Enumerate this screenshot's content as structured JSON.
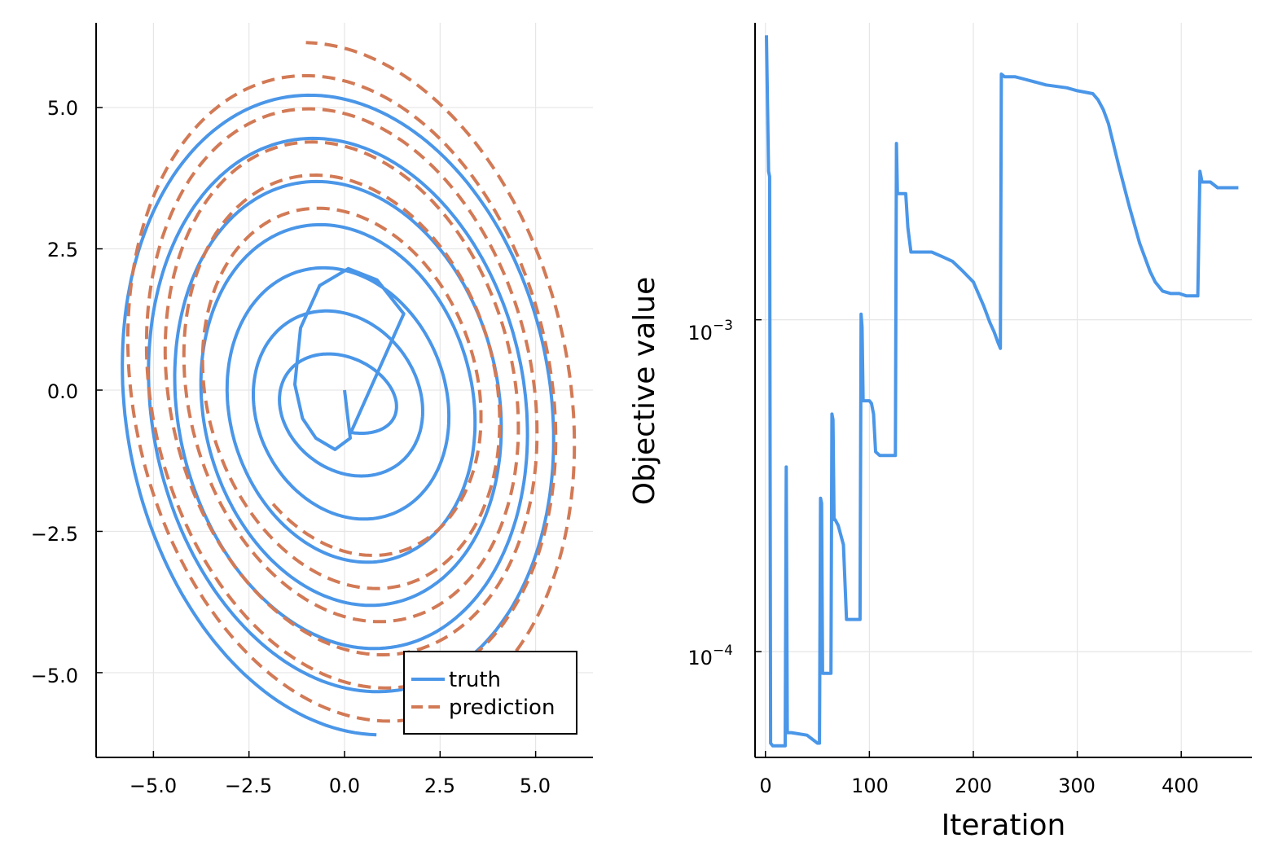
{
  "colors": {
    "truth": "#4a96e8",
    "prediction": "#d27a56",
    "grid": "#e6e6e6",
    "axis": "#000000",
    "background": "#ffffff"
  },
  "chart_data": [
    {
      "type": "line",
      "title": "",
      "xlabel": "",
      "ylabel": "",
      "xlim": [
        -6.5,
        6.5
      ],
      "ylim": [
        -6.5,
        6.5
      ],
      "xticks": [
        -5.0,
        -2.5,
        0.0,
        2.5,
        5.0
      ],
      "yticks": [
        -5.0,
        -2.5,
        0.0,
        2.5,
        5.0
      ],
      "xtick_labels": [
        "−5.0",
        "−2.5",
        "0.0",
        "2.5",
        "5.0"
      ],
      "ytick_labels": [
        "−5.0",
        "−2.5",
        "0.0",
        "2.5",
        "5.0"
      ],
      "grid": true,
      "legend_position": "bottom-right",
      "series": [
        {
          "name": "truth",
          "style": "solid",
          "spiral": {
            "start_angle_deg": -90,
            "end_angle_deg": 2430,
            "x_center": 0.0,
            "x_amp_start": 1.2,
            "x_amp_end": 6.0,
            "y_center": -0.25,
            "y_amp_start": 0.5,
            "y_amp_end": 5.85,
            "x_phase_deg": 8
          },
          "start_points": [
            [
              0.0,
              0.0
            ],
            [
              0.15,
              -0.85
            ],
            [
              -0.25,
              -1.05
            ],
            [
              -0.75,
              -0.85
            ],
            [
              -1.1,
              -0.5
            ],
            [
              -1.3,
              0.1
            ],
            [
              -1.15,
              1.1
            ],
            [
              -0.65,
              1.85
            ],
            [
              0.1,
              2.15
            ],
            [
              0.85,
              1.95
            ],
            [
              1.55,
              1.35
            ]
          ]
        },
        {
          "name": "prediction",
          "style": "dashed",
          "spiral": {
            "start_angle_deg": 225,
            "end_angle_deg": 2250,
            "x_center": 0.05,
            "x_amp_start": 3.35,
            "x_amp_end": 6.1,
            "y_center": 0.0,
            "y_amp_start": 2.85,
            "y_amp_end": 6.15,
            "x_phase_deg": 10
          }
        }
      ]
    },
    {
      "type": "line",
      "title": "",
      "xlabel": "Iteration",
      "ylabel": "Objective value",
      "xlim": [
        -10,
        468
      ],
      "ylim": [
        4.8e-05,
        0.00785
      ],
      "yscale": "log",
      "xticks": [
        0,
        100,
        200,
        300,
        400
      ],
      "xtick_labels": [
        "0",
        "100",
        "200",
        "300",
        "400"
      ],
      "yticks": [
        0.0001,
        0.001
      ],
      "ytick_labels": [
        {
          "base": "10",
          "exp": "−4"
        },
        {
          "base": "10",
          "exp": "−3"
        }
      ],
      "grid": true,
      "series": [
        {
          "name": "",
          "x": [
            1,
            3,
            4,
            5,
            7,
            10,
            15,
            19,
            20,
            21,
            25,
            40,
            50,
            52,
            53,
            54,
            55,
            57,
            58,
            60,
            63,
            64,
            65,
            66,
            67,
            70,
            75,
            78,
            80,
            85,
            90,
            91,
            92,
            93,
            94,
            95,
            100,
            102,
            104,
            106,
            110,
            120,
            124,
            125,
            126,
            127,
            129,
            135,
            137,
            140,
            145,
            150,
            160,
            170,
            180,
            190,
            200,
            210,
            216,
            220,
            224,
            226,
            227,
            230,
            240,
            250,
            270,
            290,
            300,
            315,
            320,
            325,
            330,
            340,
            350,
            360,
            370,
            375,
            382,
            390,
            398,
            405,
            410,
            415,
            416,
            418,
            419,
            420,
            428,
            435,
            440,
            450,
            455
          ],
          "y": [
            0.0072,
            0.0028,
            0.0027,
            5.3e-05,
            5.2e-05,
            5.2e-05,
            5.2e-05,
            5.2e-05,
            0.00036,
            5.7e-05,
            5.7e-05,
            5.6e-05,
            5.3e-05,
            5.3e-05,
            0.00029,
            0.00028,
            8.6e-05,
            8.6e-05,
            8.6e-05,
            8.6e-05,
            8.6e-05,
            0.00052,
            0.0005,
            0.00025,
            0.00025,
            0.00024,
            0.00021,
            0.000125,
            0.000125,
            0.000125,
            0.000125,
            0.000125,
            0.00104,
            0.00095,
            0.00057,
            0.00057,
            0.00057,
            0.00056,
            0.00052,
            0.0004,
            0.00039,
            0.00039,
            0.00039,
            0.00039,
            0.0034,
            0.0024,
            0.0024,
            0.0024,
            0.0019,
            0.0016,
            0.0016,
            0.0016,
            0.0016,
            0.00155,
            0.0015,
            0.0014,
            0.0013,
            0.0011,
            0.00098,
            0.00092,
            0.00085,
            0.00082,
            0.0055,
            0.0054,
            0.0054,
            0.0053,
            0.0051,
            0.005,
            0.0049,
            0.0048,
            0.0046,
            0.0043,
            0.0039,
            0.0029,
            0.0022,
            0.0017,
            0.0014,
            0.0013,
            0.00122,
            0.0012,
            0.0012,
            0.00118,
            0.00118,
            0.00118,
            0.00118,
            0.0028,
            0.0027,
            0.0026,
            0.0026,
            0.0025,
            0.0025,
            0.0025,
            0.0025
          ]
        }
      ]
    }
  ]
}
